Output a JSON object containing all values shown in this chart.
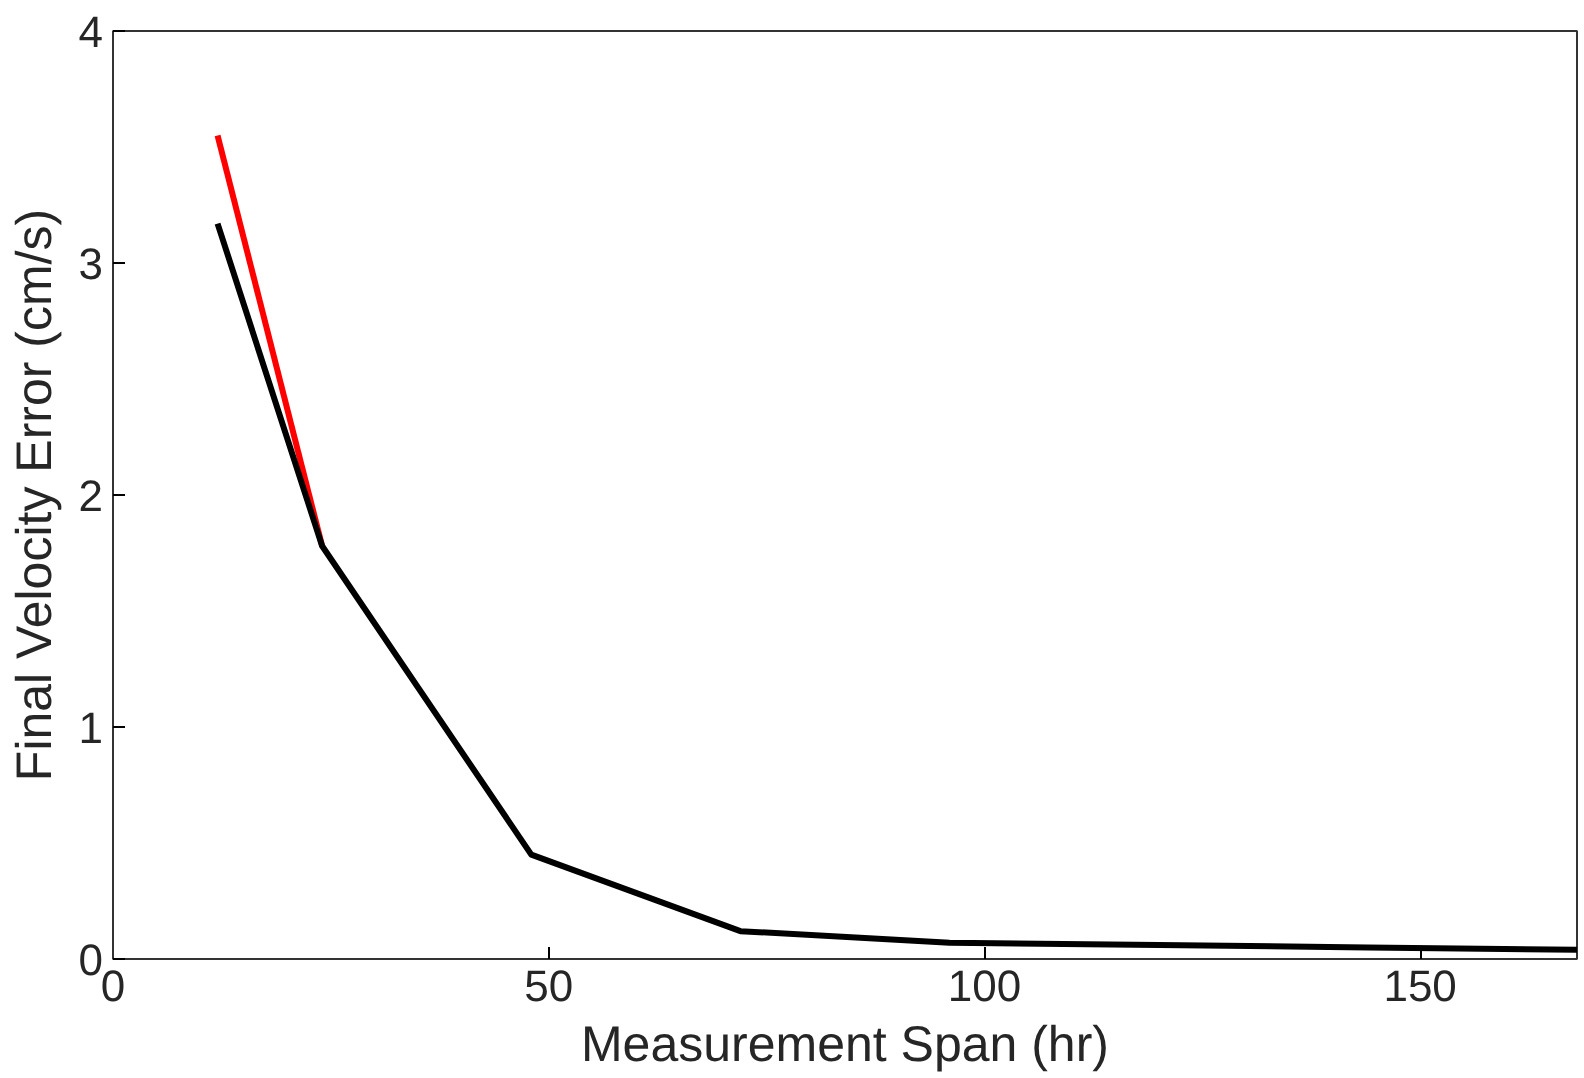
{
  "chart_data": {
    "type": "line",
    "xlabel": "Measurement Span (hr)",
    "ylabel": "Final Velocity Error (cm/s)",
    "xlim": [
      0,
      168
    ],
    "xticks": [
      0,
      50,
      100,
      150
    ],
    "ylim": [
      0,
      4
    ],
    "yticks": [
      0,
      1,
      2,
      3,
      4
    ],
    "grid": false,
    "line_style": "solid",
    "series": [
      {
        "color": "#ff0000",
        "x": [
          12,
          24
        ],
        "values": [
          3.55,
          1.78
        ]
      },
      {
        "color": "#000000",
        "x": [
          12,
          24,
          48,
          72,
          96,
          120,
          144,
          168
        ],
        "values": [
          3.17,
          1.78,
          0.45,
          0.12,
          0.07,
          0.06,
          0.05,
          0.04
        ]
      }
    ]
  }
}
